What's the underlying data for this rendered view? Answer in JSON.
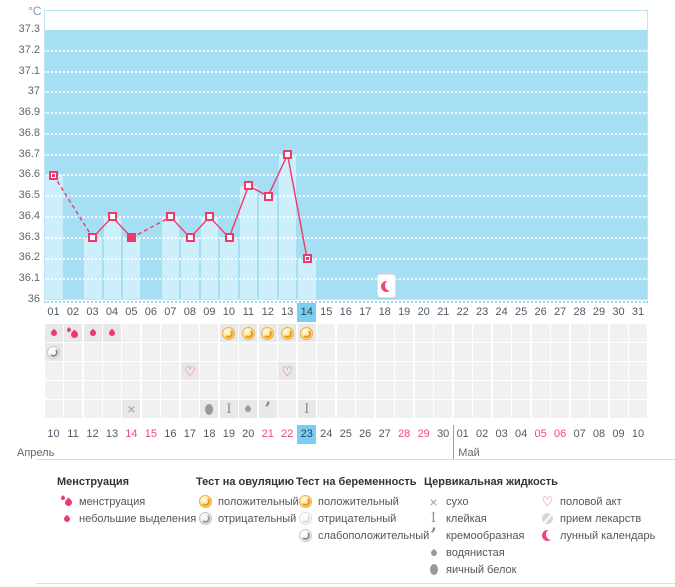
{
  "chart_data": {
    "type": "line",
    "ylabel": "°C",
    "yticks": [
      "37.3",
      "37.2",
      "37.1",
      "37",
      "36.9",
      "36.8",
      "36.7",
      "36.6",
      "36.5",
      "36.4",
      "36.3",
      "36.2",
      "36.1",
      "36"
    ],
    "ylim": [
      36,
      37.4
    ],
    "grid": "horizontal-dotted-white",
    "legend_position": "bottom",
    "x_cycle_days": [
      "01",
      "02",
      "03",
      "04",
      "05",
      "06",
      "07",
      "08",
      "09",
      "10",
      "11",
      "12",
      "13",
      "14",
      "15",
      "16",
      "17",
      "18",
      "19",
      "20",
      "21",
      "22",
      "23",
      "24",
      "25",
      "26",
      "27",
      "28",
      "29",
      "30",
      "31"
    ],
    "current_cycle_day": "14",
    "missing_days": [
      2,
      6
    ],
    "series": [
      {
        "name": "temperature",
        "points": [
          {
            "day": 1,
            "temp": 36.6,
            "marker": "dot"
          },
          {
            "day": 3,
            "temp": 36.3,
            "marker": "hollow"
          },
          {
            "day": 4,
            "temp": 36.4,
            "marker": "hollow"
          },
          {
            "day": 5,
            "temp": 36.3,
            "marker": "filled"
          },
          {
            "day": 7,
            "temp": 36.4,
            "marker": "hollow"
          },
          {
            "day": 8,
            "temp": 36.3,
            "marker": "hollow"
          },
          {
            "day": 9,
            "temp": 36.4,
            "marker": "hollow"
          },
          {
            "day": 10,
            "temp": 36.3,
            "marker": "hollow"
          },
          {
            "day": 11,
            "temp": 36.55,
            "marker": "hollow"
          },
          {
            "day": 12,
            "temp": 36.5,
            "marker": "hollow"
          },
          {
            "day": 13,
            "temp": 36.7,
            "marker": "hollow"
          },
          {
            "day": 14,
            "temp": 36.2,
            "marker": "dot"
          }
        ]
      }
    ],
    "moon_event": {
      "day": 18
    }
  },
  "events": {
    "rows": [
      {
        "name": "menstruation-and-ovulation-tests",
        "cells": [
          {
            "day": 1,
            "icon": "drop-small"
          },
          {
            "day": 2,
            "icon": "drops"
          },
          {
            "day": 3,
            "icon": "drop-small"
          },
          {
            "day": 4,
            "icon": "drop-small"
          },
          {
            "day": 10,
            "icon": "test-positive"
          },
          {
            "day": 11,
            "icon": "test-positive"
          },
          {
            "day": 12,
            "icon": "test-positive"
          },
          {
            "day": 13,
            "icon": "test-positive"
          },
          {
            "day": 14,
            "icon": "test-positive"
          }
        ]
      },
      {
        "name": "pregnancy-tests",
        "cells": [
          {
            "day": 1,
            "icon": "test-weak-positive"
          }
        ]
      },
      {
        "name": "intercourse",
        "cells": [
          {
            "day": 8,
            "icon": "heart"
          },
          {
            "day": 13,
            "icon": "heart"
          }
        ]
      },
      {
        "name": "notes",
        "cells": []
      },
      {
        "name": "cervical-fluid",
        "cells": [
          {
            "day": 5,
            "icon": "dry"
          },
          {
            "day": 9,
            "icon": "egg-white"
          },
          {
            "day": 10,
            "icon": "sticky"
          },
          {
            "day": 11,
            "icon": "watery"
          },
          {
            "day": 12,
            "icon": "creamy"
          },
          {
            "day": 14,
            "icon": "sticky"
          }
        ]
      }
    ]
  },
  "calendar": {
    "month_start_label": "Апрель",
    "month_end_label": "Май",
    "may_start_index": 21,
    "current_date": "23",
    "dates": [
      {
        "label": "10"
      },
      {
        "label": "11"
      },
      {
        "label": "12"
      },
      {
        "label": "13"
      },
      {
        "label": "14",
        "weekend": true
      },
      {
        "label": "15",
        "weekend": true
      },
      {
        "label": "16"
      },
      {
        "label": "17"
      },
      {
        "label": "18"
      },
      {
        "label": "19"
      },
      {
        "label": "20"
      },
      {
        "label": "21",
        "weekend": true
      },
      {
        "label": "22",
        "weekend": true
      },
      {
        "label": "23",
        "today": true
      },
      {
        "label": "24"
      },
      {
        "label": "25"
      },
      {
        "label": "26"
      },
      {
        "label": "27"
      },
      {
        "label": "28",
        "weekend": true
      },
      {
        "label": "29",
        "weekend": true
      },
      {
        "label": "30"
      },
      {
        "label": "01"
      },
      {
        "label": "02"
      },
      {
        "label": "03"
      },
      {
        "label": "04"
      },
      {
        "label": "05",
        "weekend": true
      },
      {
        "label": "06",
        "weekend": true
      },
      {
        "label": "07"
      },
      {
        "label": "08"
      },
      {
        "label": "09"
      },
      {
        "label": "10"
      }
    ]
  },
  "legend": {
    "sections": [
      {
        "title": "Менструация",
        "items": [
          {
            "icon": "drops",
            "label": "менструация"
          },
          {
            "icon": "drop-small",
            "label": "небольшие выделения"
          }
        ]
      },
      {
        "title": "Тест на овуляцию",
        "items": [
          {
            "icon": "test-positive",
            "label": "положительный"
          },
          {
            "icon": "test-negative",
            "label": "отрицательный"
          }
        ]
      },
      {
        "title": "Тест на беременность",
        "items": [
          {
            "icon": "test-positive",
            "label": "положительный"
          },
          {
            "icon": "test-negative-white",
            "label": "отрицательный"
          },
          {
            "icon": "test-weak-positive",
            "label": "слабоположительный"
          }
        ]
      },
      {
        "title": "Цервикальная жидкость",
        "items": [
          {
            "icon": "dry",
            "label": "сухо"
          },
          {
            "icon": "sticky",
            "label": "клейкая"
          },
          {
            "icon": "creamy",
            "label": "кремообразная"
          },
          {
            "icon": "watery",
            "label": "водянистая"
          },
          {
            "icon": "egg-white",
            "label": "яичный белок"
          }
        ]
      },
      {
        "title": "",
        "items": [
          {
            "icon": "heart",
            "label": "половой акт"
          },
          {
            "icon": "pill",
            "label": "прием лекарств"
          },
          {
            "icon": "moon",
            "label": "лунный календарь"
          }
        ]
      }
    ]
  },
  "icon_glyphs": {
    "heart": "♡",
    "dry": "×",
    "sticky": "I",
    "creamy": "’"
  },
  "colors": {
    "plot_background": "#a6dff3",
    "measured_day_column": "#cdeefb",
    "temperature_line": "#ee3a6a",
    "weekend_date": "#ef4879",
    "today_highlight": "#79cef2",
    "positive_test": "#ffd75e",
    "event_cell": "#f1f1f1",
    "grid_dots": "#ffffff"
  }
}
